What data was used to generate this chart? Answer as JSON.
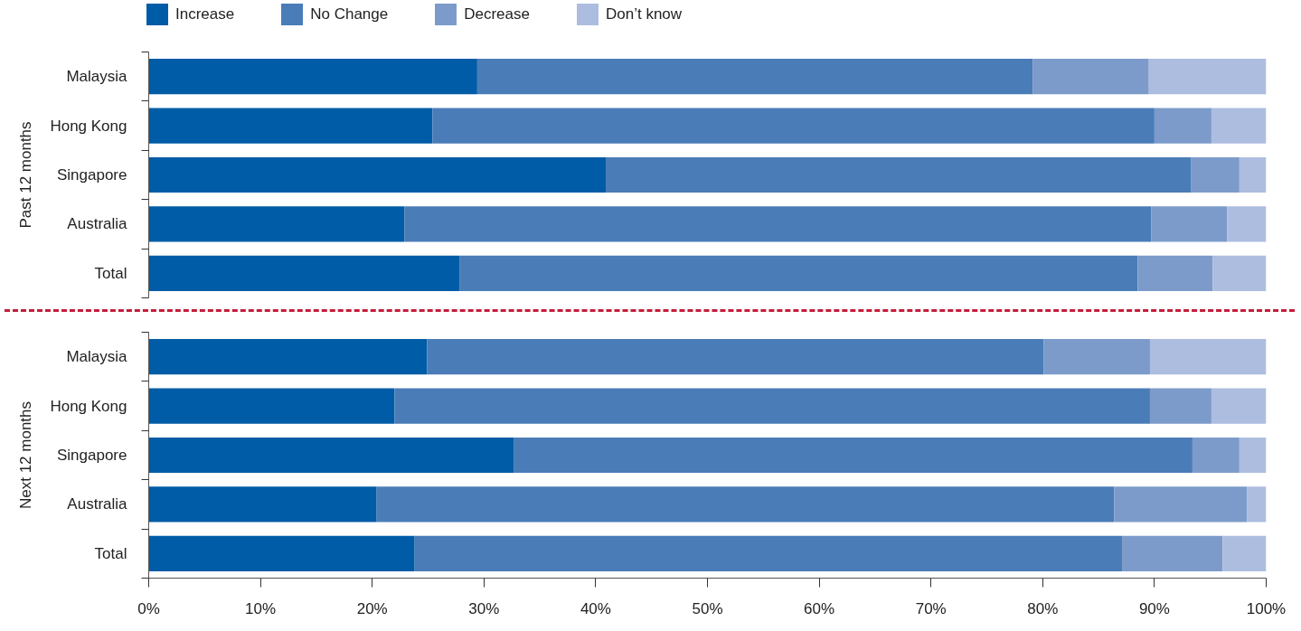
{
  "chart_data": [
    {
      "type": "bar",
      "orientation": "horizontal",
      "stacked": true,
      "ylabel": "Past 12 months",
      "categories": [
        "Malaysia",
        "Hong Kong",
        "Singapore",
        "Australia",
        "Total"
      ],
      "xlim": [
        0,
        100
      ],
      "tick_labels": "y",
      "legend": "top",
      "grid": false,
      "series": [
        {
          "name": "Increase",
          "color": "#005ca6",
          "values": [
            29.4,
            25.4,
            40.9,
            22.9,
            27.8
          ]
        },
        {
          "name": "No Change",
          "color": "#4a7cb8",
          "values": [
            49.7,
            64.6,
            52.4,
            66.8,
            60.7
          ]
        },
        {
          "name": "Decrease",
          "color": "#7c9bca",
          "values": [
            10.4,
            5.1,
            4.3,
            6.8,
            6.7
          ]
        },
        {
          "name": "Don’t know",
          "color": "#adbde0",
          "values": [
            10.5,
            4.9,
            2.4,
            3.5,
            4.8
          ]
        }
      ]
    },
    {
      "type": "bar",
      "orientation": "horizontal",
      "stacked": true,
      "ylabel": "Next 12 months",
      "categories": [
        "Malaysia",
        "Hong Kong",
        "Singapore",
        "Australia",
        "Total"
      ],
      "xlim": [
        0,
        100
      ],
      "xticks": [
        {
          "value": 0,
          "label": "0%"
        },
        {
          "value": 10,
          "label": "10%"
        },
        {
          "value": 20,
          "label": "20%"
        },
        {
          "value": 30,
          "label": "30%"
        },
        {
          "value": 40,
          "label": "40%"
        },
        {
          "value": 50,
          "label": "50%"
        },
        {
          "value": 60,
          "label": "60%"
        },
        {
          "value": 70,
          "label": "70%"
        },
        {
          "value": 80,
          "label": "80%"
        },
        {
          "value": 90,
          "label": "90%"
        },
        {
          "value": 100,
          "label": "100%"
        }
      ],
      "legend": false,
      "grid": false,
      "series": [
        {
          "color": "#005ca6",
          "values": [
            24.9,
            22.0,
            32.7,
            20.4,
            23.8
          ]
        },
        {
          "color": "#4a7cb8",
          "values": [
            55.2,
            67.6,
            60.7,
            66.0,
            63.3
          ]
        },
        {
          "color": "#7c9bca",
          "values": [
            9.5,
            5.5,
            4.2,
            11.9,
            9.0
          ]
        },
        {
          "color": "#adbde0",
          "values": [
            10.4,
            4.9,
            2.4,
            1.7,
            3.9
          ]
        }
      ]
    }
  ]
}
